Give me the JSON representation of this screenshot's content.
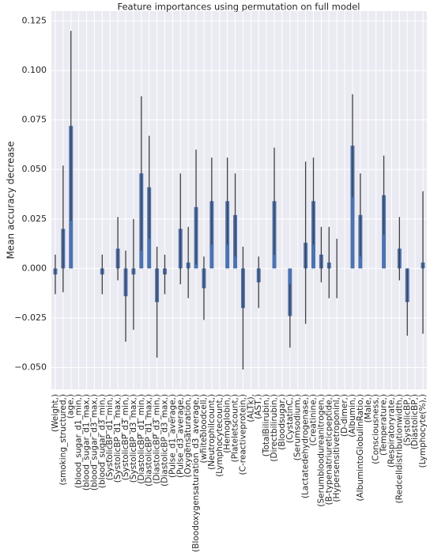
{
  "chart_data": {
    "type": "bar",
    "title": "Feature importances using permutation on full model",
    "ylabel": "Mean accuracy decrease",
    "categories": [
      "(Weight,)",
      "(smoking_structured,)",
      "(age,)",
      "(blood_sugar_d1_min,)",
      "(blood_sugar_d1_max,)",
      "(blood_sugar_d3_max,)",
      "(blood_sugar_d3_min,)",
      "(SystolicBP_d1_min,)",
      "(SystolicBP_d1_max,)",
      "(SystolicBP_d3_min,)",
      "(SystolicBP_d3_max,)",
      "(DiastolicBP_d1_min,)",
      "(DiastolicBP_d1_max,)",
      "(DiastolicBP_d3_min,)",
      "(DiastolicBP_d3_max,)",
      "(Pulse_d1_average,)",
      "(Pulse_d3_average,)",
      "(Oxygensaturation,)",
      "(Bloodoxygensaturation_d3_average,)",
      "(whitebloodcell,)",
      "(Neutrophilcount,)",
      "(Lymphocytecount,)",
      "(Hemoglobin,)",
      "(Plateletscount,)",
      "(C-reactiveprotein,)",
      "(ALTk),",
      "(AST,)",
      "(TotalBilirubin,)",
      "(Directbilirubin,)",
      "(Bloodsugar,)",
      "(CystatinC,)",
      "(Serumsodium,)",
      "(Lactatedehydrogenase,)",
      "(Creatinine,)",
      "(Serumbloodureanitrogen,)",
      "(B-typenatriureticpeptide,)",
      "(Hypersensitivetroponinl,)",
      "(D-dimer,)",
      "(Albumin,)",
      "(AlbumintoGlobulinRatio,)",
      "(Male,)",
      "(Consciousness,)",
      "(Temperature,)",
      "(Respiratoryrate,)",
      "(Redcelldistributionwidth,)",
      "(SystolicBP,)",
      "(DiastolicBP,)",
      "(Lymphocyte(%),)"
    ],
    "values": [
      -0.003,
      0.02,
      0.072,
      0,
      0,
      0,
      -0.003,
      0,
      0.01,
      -0.014,
      -0.003,
      0.048,
      0.041,
      -0.017,
      -0.003,
      0,
      0.02,
      0.003,
      0.031,
      -0.01,
      0.034,
      0,
      0.034,
      0.027,
      -0.02,
      0,
      -0.007,
      0,
      0.034,
      0,
      -0.024,
      0,
      0.013,
      0.034,
      0.007,
      0.003,
      0,
      0,
      0.062,
      0.027,
      0,
      0,
      0.037,
      0,
      0.01,
      -0.017,
      0,
      0.003
    ],
    "errors": [
      0.01,
      0.032,
      0.048,
      0,
      0,
      0,
      0.01,
      0,
      0.016,
      0.023,
      0.028,
      0.039,
      0.026,
      0.028,
      0.01,
      0,
      0.028,
      0.018,
      0.029,
      0.016,
      0.022,
      0,
      0.022,
      0.021,
      0.031,
      0,
      0.013,
      0,
      0.027,
      0,
      0.016,
      0,
      0.041,
      0.022,
      0.014,
      0.018,
      0.015,
      0,
      0.026,
      0.021,
      0,
      0,
      0.02,
      0,
      0.016,
      0.017,
      0,
      0.036
    ],
    "color": "#4c72b0",
    "error_color": "#404040",
    "ylim": [
      -0.061,
      0.13
    ],
    "yticks": [
      {
        "value": -0.05,
        "label": "−0.050"
      },
      {
        "value": -0.025,
        "label": "−0.025"
      },
      {
        "value": 0,
        "label": "0.000"
      },
      {
        "value": 0.025,
        "label": "0.025"
      },
      {
        "value": 0.05,
        "label": "0.050"
      },
      {
        "value": 0.075,
        "label": "0.075"
      },
      {
        "value": 0.1,
        "label": "0.100"
      },
      {
        "value": 0.125,
        "label": "0.125"
      }
    ],
    "grid": true
  }
}
